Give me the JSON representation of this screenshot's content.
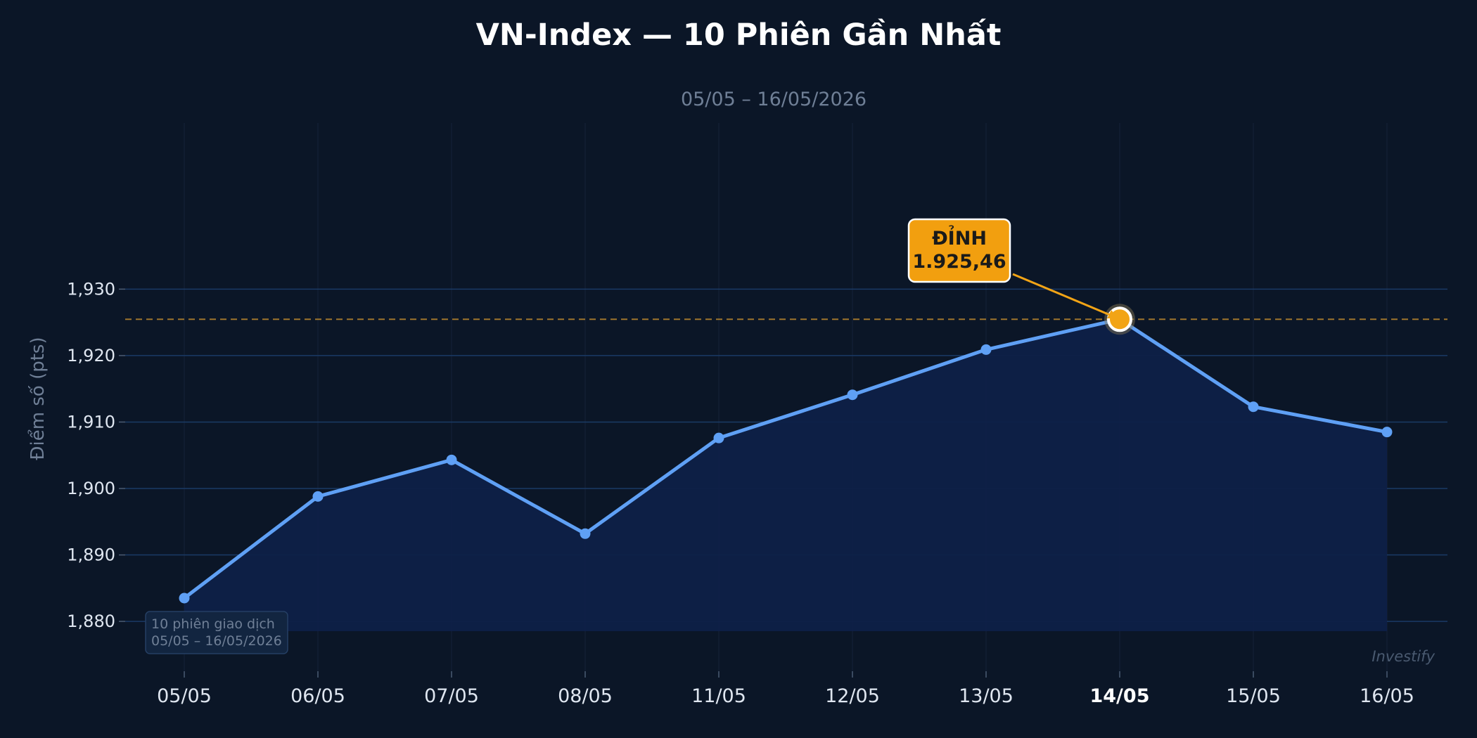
{
  "chart_data": {
    "type": "line",
    "title": "VN-Index — 10 Phiên Gần Nhất",
    "subtitle": "05/05 – 16/05/2026",
    "xlabel": "",
    "ylabel": "Điểm số (pts)",
    "categories": [
      "05/05",
      "06/05",
      "07/05",
      "08/05",
      "11/05",
      "12/05",
      "13/05",
      "14/05",
      "15/05",
      "16/05"
    ],
    "series": [
      {
        "values": [
          1883.5,
          1898.8,
          1904.3,
          1893.2,
          1907.6,
          1914.1,
          1920.9,
          1925.46,
          1912.3,
          1908.5
        ]
      }
    ],
    "ylim": [
      1872.5,
      1955
    ],
    "yticks": [
      1880,
      1890,
      1900,
      1910,
      1920,
      1930
    ],
    "ytick_labels": [
      "1,880",
      "1,890",
      "1,900",
      "1,910",
      "1,920",
      "1,930"
    ],
    "grid": true,
    "area_fill": true,
    "highlight": {
      "index": 7,
      "category": "14/05",
      "value": 1925.46,
      "label_line1": "ĐỈNH",
      "label_line2": "1.925,46"
    },
    "note_box": {
      "line1": "10 phiên giao dịch",
      "line2": "05/05 – 16/05/2026"
    },
    "watermark": "Investify",
    "colors": {
      "background": "#0b1627",
      "line": "#5fa0f5",
      "area": "#0e2047",
      "grid": "#1b3a66",
      "peak": "#f2a416",
      "peak_line": "#b8862f"
    }
  }
}
